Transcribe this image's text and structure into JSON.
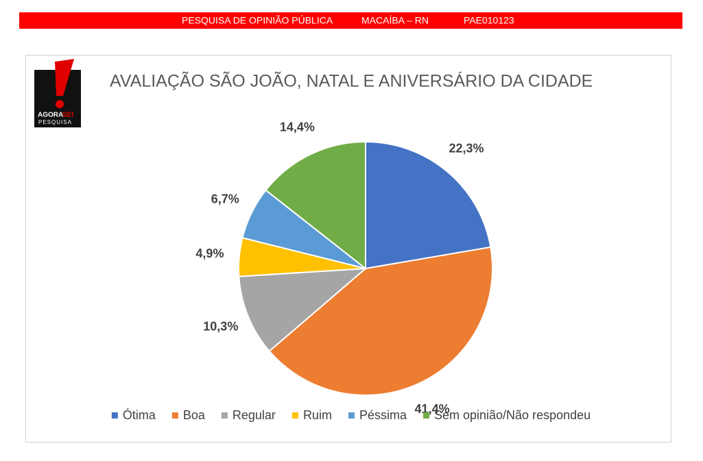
{
  "header": {
    "items": [
      "PESQUISA DE OPINIÃO PÚBLICA",
      "MACAÍBA – RN",
      "PAE010123"
    ]
  },
  "logo": {
    "word1": "AGORA",
    "word2": "SEI",
    "word3": "PESQUISA"
  },
  "chart_data": {
    "type": "pie",
    "title": "AVALIAÇÃO SÃO JOÃO, NATAL E ANIVERSÁRIO DA CIDADE",
    "categories": [
      "Ótima",
      "Boa",
      "Regular",
      "Ruim",
      "Péssima",
      "Sem opinião/Não respondeu"
    ],
    "values": [
      22.3,
      41.4,
      10.3,
      4.9,
      6.7,
      14.4
    ],
    "value_labels": [
      "22,3%",
      "41,4%",
      "10,3%",
      "4,9%",
      "6,7%",
      "14,4%"
    ],
    "colors": [
      "#4472c4",
      "#ed7d31",
      "#a5a5a5",
      "#ffc000",
      "#5b9bd5",
      "#70ad47"
    ],
    "legend": "bottom"
  }
}
